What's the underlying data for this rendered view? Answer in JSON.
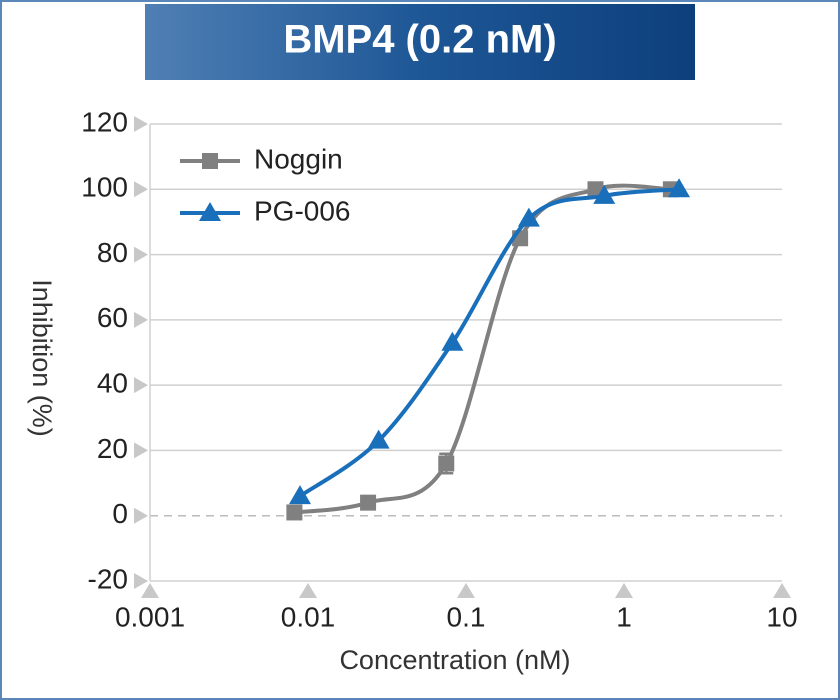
{
  "chart_data": {
    "type": "line",
    "title": "BMP4 (0.2 nM)",
    "x_label": "Concentration (nM)",
    "y_label": "Inhibition (%)",
    "xscale": "log",
    "xlim": [
      0.001,
      10
    ],
    "xticks": [
      0.001,
      0.01,
      0.1,
      1,
      10
    ],
    "ylim": [
      -20,
      120
    ],
    "yticks": [
      -20,
      0,
      20,
      40,
      60,
      80,
      100,
      120
    ],
    "grid": true,
    "legend": "upper-left",
    "series": [
      {
        "name": "Noggin",
        "color": "#808080",
        "marker": "square",
        "x": [
          0.0082,
          0.024,
          0.075,
          0.22,
          0.66,
          1.98
        ],
        "values": [
          1,
          4,
          16,
          85,
          100,
          100
        ],
        "errors": [
          0,
          0,
          3,
          0,
          0,
          0
        ]
      },
      {
        "name": "PG-006",
        "color": "#1a6fba",
        "marker": "triangle",
        "x": [
          0.0089,
          0.028,
          0.082,
          0.25,
          0.75,
          2.23
        ],
        "values": [
          6,
          23,
          53,
          91,
          98,
          100
        ]
      }
    ]
  }
}
